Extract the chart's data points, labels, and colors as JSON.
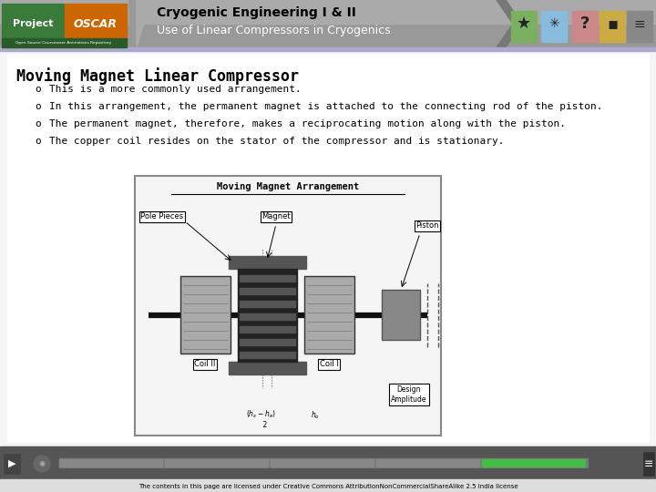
{
  "title1": "Cryogenic Engineering I & II",
  "title2": "Use of Linear Compressors in Cryogenics",
  "section_title": "Moving Magnet Linear Compressor",
  "bullets": [
    "This is a more commonly used arrangement.",
    "In this arrangement, the permanent magnet is attached to the connecting rod of the piston.",
    "The permanent magnet, therefore, makes a reciprocating motion along with the piston.",
    "The copper coil resides on the stator of the compressor and is stationary."
  ],
  "bullet_marker": "o",
  "footer_text": "The contents in this page are licensed under Creative Commons AttributionNonCommercialShareAlike 2.5 India license",
  "header_bg_top": "#888888",
  "header_bg_bottom": "#aaaaaa",
  "content_bg": "#ffffff",
  "footer_bg": "#555555",
  "logo_green": "#3a7a3a",
  "logo_orange": "#cc6600",
  "logo_sub": "Open Source Courseware Animations Repository",
  "progress_bar_color": "#44bb44",
  "image_caption": "Moving Magnet Arrangement",
  "sep_line_color": "#aaaacc",
  "icon_colors": [
    "#7ab060",
    "#88bbdd",
    "#cc8888",
    "#ccaa44",
    "#888888"
  ]
}
